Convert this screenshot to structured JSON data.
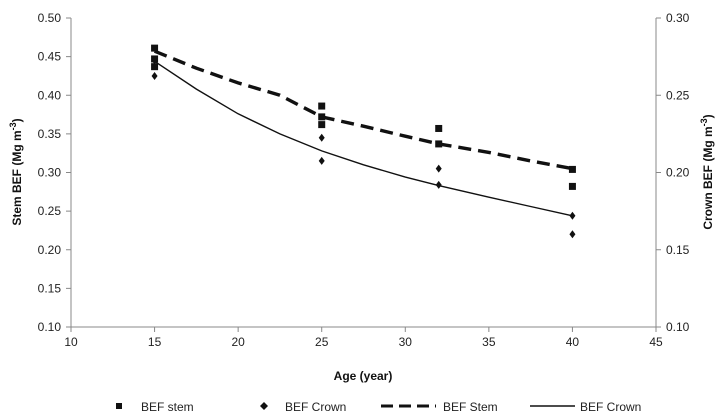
{
  "chart_data": {
    "type": "scatter",
    "xlabel": "Age (year)",
    "ylabel_left": {
      "main": "Stem BEF (Mg m",
      "sup": "-3",
      "close": ")"
    },
    "ylabel_right": {
      "main": "Crown BEF (Mg m",
      "sup": "-3",
      "close": ")"
    },
    "xlim": [
      10,
      45
    ],
    "x_ticks": [
      "10",
      "15",
      "20",
      "25",
      "30",
      "35",
      "40",
      "45"
    ],
    "ylim_left": [
      0.1,
      0.5
    ],
    "y_ticks_left": [
      "0.10",
      "0.15",
      "0.20",
      "0.25",
      "0.30",
      "0.35",
      "0.40",
      "0.45",
      "0.50"
    ],
    "ylim_right": [
      0.1,
      0.3
    ],
    "y_ticks_right": [
      "0.10",
      "0.15",
      "0.20",
      "0.25",
      "0.30"
    ],
    "grid": false,
    "legend_position": "bottom",
    "series": [
      {
        "name": "BEF stem",
        "kind": "scatter",
        "marker": "square",
        "axis": "left",
        "color": "#111111",
        "points": [
          [
            15,
            0.461
          ],
          [
            15,
            0.447
          ],
          [
            15,
            0.437
          ],
          [
            25,
            0.386
          ],
          [
            25,
            0.372
          ],
          [
            25,
            0.362
          ],
          [
            32,
            0.357
          ],
          [
            32,
            0.337
          ],
          [
            40,
            0.304
          ],
          [
            40,
            0.282
          ]
        ]
      },
      {
        "name": "BEF Crown",
        "kind": "scatter",
        "marker": "diamond",
        "axis": "right",
        "color": "#111111",
        "points": [
          [
            15,
            0.2725
          ],
          [
            15,
            0.2625
          ],
          [
            25,
            0.2225
          ],
          [
            25,
            0.2075
          ],
          [
            32,
            0.2025
          ],
          [
            32,
            0.192
          ],
          [
            40,
            0.172
          ],
          [
            40,
            0.16
          ]
        ]
      },
      {
        "name": "BEF Stem",
        "kind": "line",
        "style": "dashed",
        "axis": "left",
        "color": "#111111",
        "points": [
          [
            15,
            0.457
          ],
          [
            17.5,
            0.435
          ],
          [
            20,
            0.416
          ],
          [
            22.5,
            0.4
          ],
          [
            25,
            0.372
          ],
          [
            27.5,
            0.36
          ],
          [
            30,
            0.347
          ],
          [
            32,
            0.337
          ],
          [
            35,
            0.326
          ],
          [
            37.5,
            0.315
          ],
          [
            40,
            0.305
          ]
        ]
      },
      {
        "name": "BEF Crown",
        "kind": "line",
        "style": "solid",
        "axis": "right",
        "color": "#111111",
        "points": [
          [
            15,
            0.272
          ],
          [
            17.5,
            0.254
          ],
          [
            20,
            0.238
          ],
          [
            22.5,
            0.225
          ],
          [
            25,
            0.214
          ],
          [
            27.5,
            0.205
          ],
          [
            30,
            0.197
          ],
          [
            32,
            0.1915
          ],
          [
            35,
            0.184
          ],
          [
            37.5,
            0.178
          ],
          [
            40,
            0.172
          ]
        ]
      }
    ]
  },
  "legend": [
    {
      "label": "BEF stem",
      "symbol": "square"
    },
    {
      "label": "BEF Crown",
      "symbol": "diamond"
    },
    {
      "label": "BEF Stem",
      "symbol": "dashed-line"
    },
    {
      "label": "BEF Crown",
      "symbol": "solid-line"
    }
  ]
}
